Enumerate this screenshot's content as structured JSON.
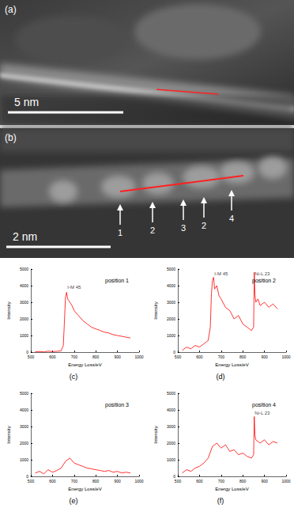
{
  "images": [
    {
      "label": "(a)",
      "scale_bar": "5 nm"
    },
    {
      "label": "(b)",
      "scale_bar": "2 nm",
      "markers": [
        "1",
        "2",
        "3",
        "2",
        "4"
      ]
    }
  ],
  "chart_data": [
    {
      "type": "line",
      "title": "position 1",
      "subtitle": "(c)",
      "x_label": "Energy Loss/eV",
      "y_label": "Intensity",
      "color": "#ff0000",
      "xlim": [
        500,
        1000
      ],
      "xticks": [
        500,
        600,
        700,
        800,
        900,
        1000
      ],
      "ylim": [
        0,
        5000
      ],
      "yticks": [
        0,
        1000,
        2000,
        3000,
        4000,
        5000
      ],
      "annotations": [
        {
          "text": "I-M 45",
          "x": 700,
          "y": 3900
        }
      ],
      "x": [
        520,
        540,
        560,
        580,
        600,
        620,
        640,
        650,
        655,
        660,
        665,
        670,
        680,
        690,
        700,
        720,
        740,
        760,
        780,
        800,
        820,
        840,
        860,
        880,
        900,
        920,
        940,
        960
      ],
      "values": [
        20,
        40,
        10,
        60,
        30,
        50,
        80,
        400,
        1800,
        3300,
        3600,
        3200,
        3000,
        2800,
        2500,
        2200,
        1900,
        1700,
        1500,
        1400,
        1300,
        1200,
        1150,
        1050,
        1000,
        950,
        900,
        850
      ]
    },
    {
      "type": "line",
      "title": "position 2",
      "subtitle": "(d)",
      "x_label": "Energy Loss/eV",
      "y_label": "Intensity",
      "color": "#ff0000",
      "xlim": [
        500,
        1000
      ],
      "xticks": [
        500,
        600,
        700,
        800,
        900,
        1000
      ],
      "ylim": [
        0,
        5000
      ],
      "yticks": [
        0,
        1000,
        2000,
        3000,
        4000,
        5000
      ],
      "annotations": [
        {
          "text": "I-M 45",
          "x": 700,
          "y": 4700
        },
        {
          "text": "Ni-L 23",
          "x": 890,
          "y": 4700
        }
      ],
      "x": [
        520,
        540,
        560,
        580,
        600,
        620,
        640,
        650,
        655,
        660,
        665,
        670,
        680,
        690,
        700,
        720,
        740,
        760,
        780,
        800,
        820,
        840,
        850,
        853,
        856,
        860,
        870,
        880,
        900,
        920,
        940,
        960
      ],
      "values": [
        100,
        300,
        200,
        400,
        300,
        500,
        700,
        1500,
        3500,
        4300,
        4500,
        3800,
        4000,
        3400,
        3200,
        2700,
        2500,
        2000,
        2200,
        1700,
        1500,
        1300,
        1500,
        4800,
        3500,
        3000,
        3200,
        2800,
        3000,
        2700,
        2900,
        2600
      ]
    },
    {
      "type": "line",
      "title": "position 3",
      "subtitle": "(e)",
      "x_label": "Energy Loss/eV",
      "y_label": "Intensity",
      "color": "#ff0000",
      "xlim": [
        500,
        1000
      ],
      "xticks": [
        500,
        600,
        700,
        800,
        900,
        1000
      ],
      "ylim": [
        0,
        5000
      ],
      "yticks": [
        0,
        1000,
        2000,
        3000,
        4000,
        5000
      ],
      "annotations": [],
      "x": [
        520,
        540,
        560,
        580,
        600,
        620,
        640,
        660,
        680,
        700,
        720,
        740,
        760,
        780,
        800,
        820,
        840,
        860,
        880,
        900,
        920,
        940,
        960
      ],
      "values": [
        200,
        300,
        150,
        400,
        250,
        350,
        500,
        900,
        1100,
        800,
        700,
        600,
        500,
        450,
        400,
        350,
        300,
        350,
        250,
        300,
        200,
        250,
        200
      ]
    },
    {
      "type": "line",
      "title": "position 4",
      "subtitle": "(f)",
      "x_label": "Energy Loss/eV",
      "y_label": "Intensity",
      "color": "#ff0000",
      "xlim": [
        500,
        1000
      ],
      "xticks": [
        500,
        600,
        700,
        800,
        900,
        1000
      ],
      "ylim": [
        0,
        5000
      ],
      "yticks": [
        0,
        1000,
        2000,
        3000,
        4000,
        5000
      ],
      "annotations": [
        {
          "text": "Ni-L 23",
          "x": 890,
          "y": 3800
        }
      ],
      "x": [
        520,
        540,
        560,
        580,
        600,
        620,
        640,
        660,
        680,
        700,
        720,
        740,
        760,
        780,
        800,
        820,
        840,
        850,
        853,
        856,
        860,
        880,
        900,
        920,
        940,
        960
      ],
      "values": [
        200,
        400,
        300,
        500,
        600,
        800,
        1100,
        1800,
        2000,
        1700,
        1900,
        1500,
        1600,
        1300,
        1400,
        1200,
        1100,
        1300,
        3600,
        2500,
        2200,
        2000,
        2200,
        1900,
        2100,
        2000
      ]
    }
  ]
}
